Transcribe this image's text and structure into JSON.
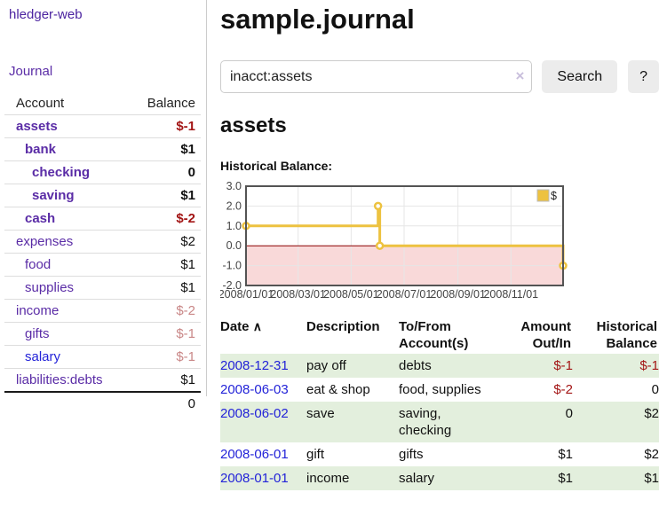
{
  "app": {
    "title": "hledger-web"
  },
  "sidebar": {
    "journal_link": "Journal",
    "table": {
      "account_header": "Account",
      "balance_header": "Balance",
      "accounts": [
        {
          "name": "assets",
          "indent": 1,
          "bold": true,
          "balance": "$-1",
          "balance_style": "neg-strong"
        },
        {
          "name": "bank",
          "indent": 2,
          "bold": true,
          "balance": "$1",
          "balance_style": "pos"
        },
        {
          "name": "checking",
          "indent": 3,
          "bold": true,
          "balance": "0",
          "balance_style": "pos"
        },
        {
          "name": "saving",
          "indent": 3,
          "bold": true,
          "balance": "$1",
          "balance_style": "pos"
        },
        {
          "name": "cash",
          "indent": 2,
          "bold": true,
          "balance": "$-2",
          "balance_style": "neg-strong"
        },
        {
          "name": "expenses",
          "indent": 1,
          "bold": false,
          "balance": "$2",
          "balance_style": "pos"
        },
        {
          "name": "food",
          "indent": 2,
          "bold": false,
          "balance": "$1",
          "balance_style": "pos"
        },
        {
          "name": "supplies",
          "indent": 2,
          "bold": false,
          "balance": "$1",
          "balance_style": "pos"
        },
        {
          "name": "income",
          "indent": 1,
          "bold": false,
          "balance": "$-2",
          "balance_style": "neg-dim"
        },
        {
          "name": "gifts",
          "indent": 2,
          "bold": false,
          "balance": "$-1",
          "balance_style": "neg-dim"
        },
        {
          "name": "salary",
          "indent": 2,
          "bold": false,
          "balance": "$-1",
          "balance_style": "neg-dim",
          "link_style": "unvisited"
        },
        {
          "name": "liabilities:debts",
          "indent": 1,
          "bold": false,
          "balance": "$1",
          "balance_style": "pos"
        }
      ],
      "total": "0"
    }
  },
  "main": {
    "title": "sample.journal",
    "search": {
      "value": "inacct:assets",
      "clear_icon": "×",
      "button": "Search",
      "help_button": "?"
    },
    "account_heading": "assets",
    "chart_label": "Historical Balance:"
  },
  "chart_data": {
    "type": "line",
    "title": "Historical Balance",
    "step": true,
    "series": [
      {
        "name": "$",
        "color": "#edc240",
        "points": [
          [
            "2008-01-01",
            1
          ],
          [
            "2008-06-01",
            2
          ],
          [
            "2008-06-03",
            0
          ],
          [
            "2008-12-31",
            -1
          ]
        ]
      }
    ],
    "x_ticks": [
      "2008/01/01",
      "2008/03/01",
      "2008/05/01",
      "2008/07/01",
      "2008/09/01",
      "2008/11/01"
    ],
    "x_range": [
      "2008-01-01",
      "2008-12-31"
    ],
    "y_ticks": [
      3.0,
      2.0,
      1.0,
      0.0,
      -1.0,
      -2.0
    ],
    "ylim": [
      -2,
      3
    ],
    "grid": true,
    "border_color": "#545454",
    "grid_color": "#e6e6e6",
    "negative_region_color": "#f9d9d9",
    "zero_line_color": "#8b0000",
    "legend": {
      "label": "$",
      "position": "top-right"
    }
  },
  "register": {
    "headers": {
      "date": "Date",
      "sort_icon": "∧",
      "description": "Description",
      "account_line1": "To/From",
      "account_line2": "Account(s)",
      "amount_line1": "Amount",
      "amount_line2": "Out/In",
      "balance_line1": "Historical",
      "balance_line2": "Balance"
    },
    "rows": [
      {
        "date": "2008-12-31",
        "description": "pay off",
        "accounts_lines": [
          "debts"
        ],
        "amount": "$-1",
        "amount_neg": true,
        "balance": "$-1",
        "balance_neg": true
      },
      {
        "date": "2008-06-03",
        "description": "eat & shop",
        "accounts_lines": [
          "food, supplies"
        ],
        "amount": "$-2",
        "amount_neg": true,
        "balance": "0",
        "balance_neg": false
      },
      {
        "date": "2008-06-02",
        "description": "save",
        "accounts_lines": [
          "saving,",
          "checking"
        ],
        "amount": "0",
        "amount_neg": false,
        "balance": "$2",
        "balance_neg": false
      },
      {
        "date": "2008-06-01",
        "description": "gift",
        "accounts_lines": [
          "gifts"
        ],
        "amount": "$1",
        "amount_neg": false,
        "balance": "$2",
        "balance_neg": false
      },
      {
        "date": "2008-01-01",
        "description": "income",
        "accounts_lines": [
          "salary"
        ],
        "amount": "$1",
        "amount_neg": false,
        "balance": "$1",
        "balance_neg": false
      }
    ]
  },
  "colors": {
    "link_purple": "#5a2ca6",
    "link_blue": "#2323d8",
    "negative_strong": "#a31515",
    "negative_dim": "#c98787",
    "row_stripe_green": "#e3efdd",
    "button_gray": "#ececec",
    "chart_gold": "#edc240"
  }
}
